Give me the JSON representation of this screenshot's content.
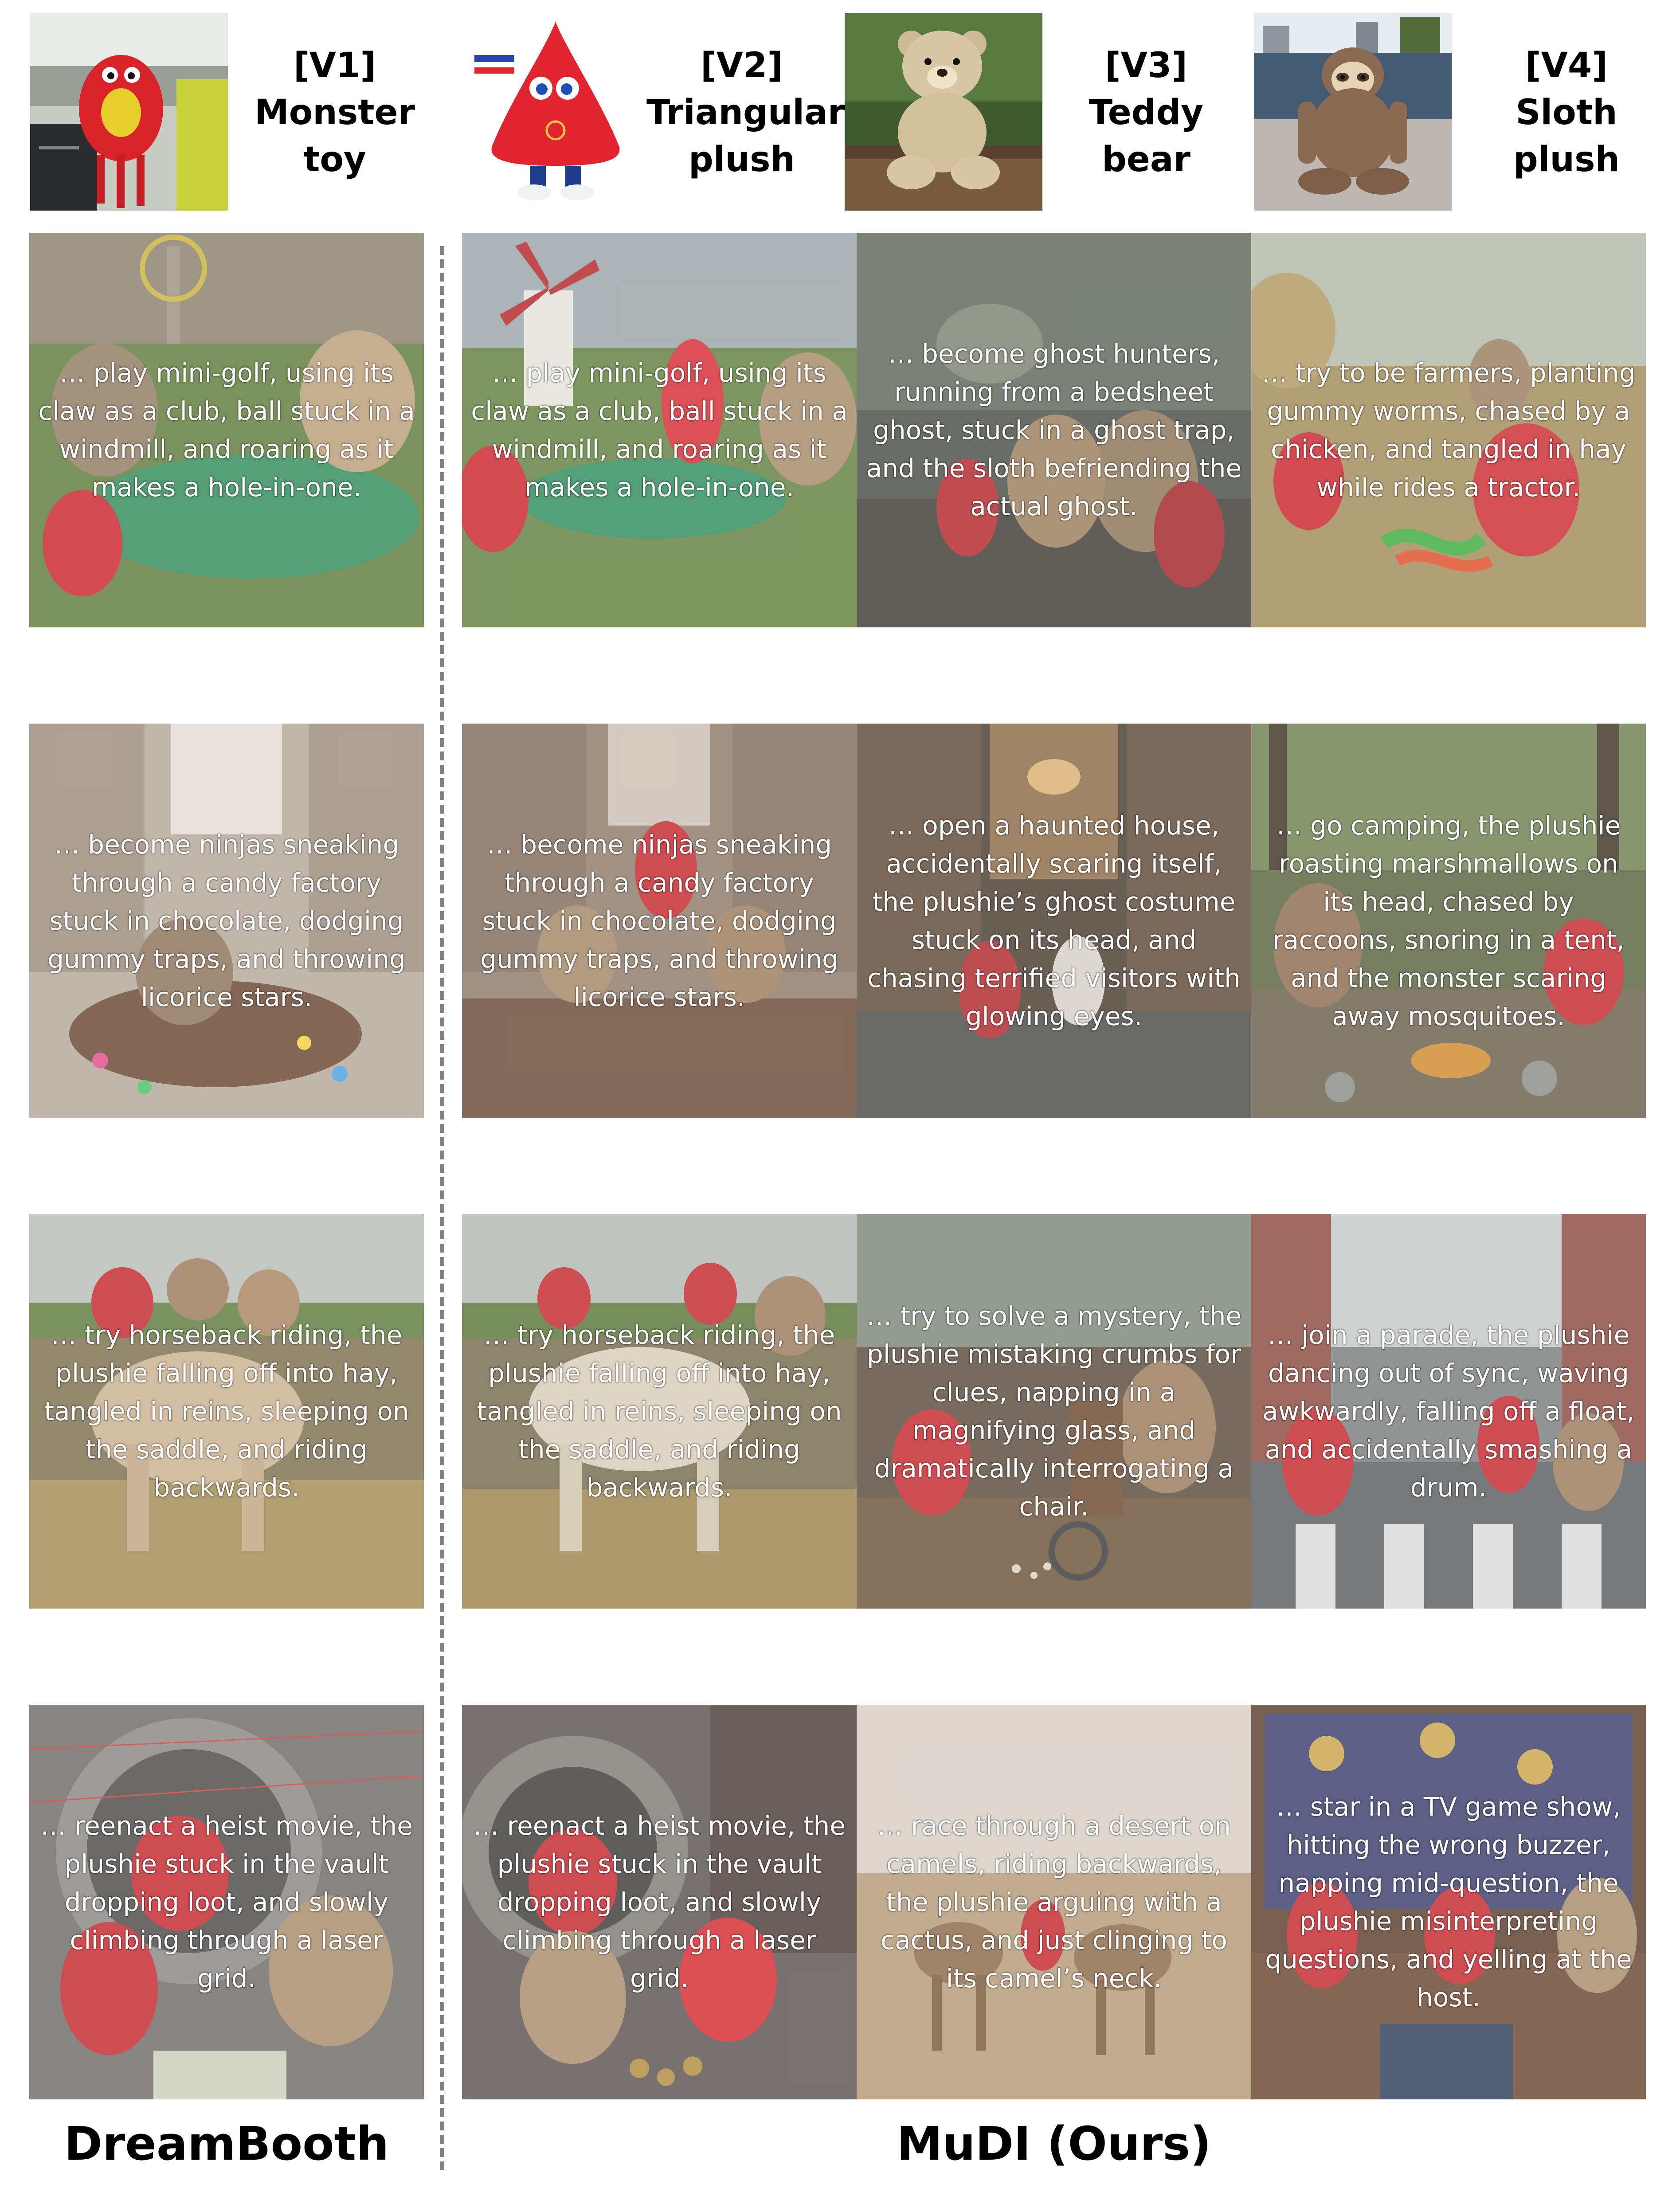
{
  "references": [
    {
      "tag": "[V1]",
      "line1": "Monster",
      "line2": "toy",
      "thumb_icon": "monster-toy-photo-icon"
    },
    {
      "tag": "[V2]",
      "line1": "Triangular",
      "line2": "plush",
      "thumb_icon": "triangular-plush-photo-icon"
    },
    {
      "tag": "[V3]",
      "line1": "Teddy",
      "line2": "bear",
      "thumb_icon": "teddy-bear-photo-icon"
    },
    {
      "tag": "[V4]",
      "line1": "Sloth",
      "line2": "plush",
      "thumb_icon": "sloth-plush-photo-icon"
    }
  ],
  "grid": {
    "rows": [
      {
        "dreambooth": "… play mini-golf, using its claw as a club, ball stuck in a windmill, and roaring as it makes a hole-in-one.",
        "mudi": [
          "… play mini-golf, using its claw as a club, ball stuck in a windmill, and roaring as it makes a hole-in-one.",
          "… become ghost hunters, running from a bedsheet ghost, stuck in a ghost trap, and the sloth befriending the actual ghost.",
          "… try to be farmers, planting gummy worms, chased by a chicken, and tangled in hay while rides a tractor."
        ]
      },
      {
        "dreambooth": "… become ninjas sneaking through a candy factory stuck in chocolate, dodging gummy traps, and throwing licorice stars.",
        "mudi": [
          "… become ninjas sneaking through a candy factory stuck in chocolate, dodging gummy traps, and throwing licorice stars.",
          "… open a haunted house, accidentally scaring itself, the plushie’s ghost costume stuck on its head, and chasing terrified visitors with glowing eyes.",
          "… go camping, the plushie roasting marshmallows on its head, chased by raccoons, snoring in a tent, and the monster scaring away mosquitoes."
        ]
      },
      {
        "dreambooth": "… try horseback riding, the plushie falling off into hay, tangled in reins, sleeping on the saddle, and riding backwards.",
        "mudi": [
          "… try horseback riding, the plushie falling off into hay, tangled in reins, sleeping on the saddle, and riding backwards.",
          "… try to solve a mystery, the plushie mistaking crumbs for clues, napping in a magnifying glass, and dramatically interrogating a chair.",
          "… join a parade, the plushie dancing out of sync, waving awkwardly, falling off a float, and accidentally smashing a drum."
        ]
      },
      {
        "dreambooth": "… reenact a heist movie, the plushie stuck in the vault dropping loot, and slowly climbing through a laser grid.",
        "mudi": [
          "… reenact a heist movie, the plushie stuck in the vault dropping loot, and slowly climbing through a laser grid.",
          "… race through a desert on camels, riding backwards, the plushie arguing with a cactus, and just clinging to its camel’s neck.",
          "… star in a TV game show, hitting the wrong buzzer, napping mid-question, the plushie misinterpreting questions, and yelling at the host."
        ]
      }
    ]
  },
  "footer": {
    "left": "DreamBooth",
    "right": "MuDI (Ours)"
  },
  "colors": {
    "divider": "#808080",
    "label_text": "#000000",
    "caption_text": "#ffffff",
    "monster_red": "#d8232a",
    "plush_tan": "#b89a78"
  }
}
